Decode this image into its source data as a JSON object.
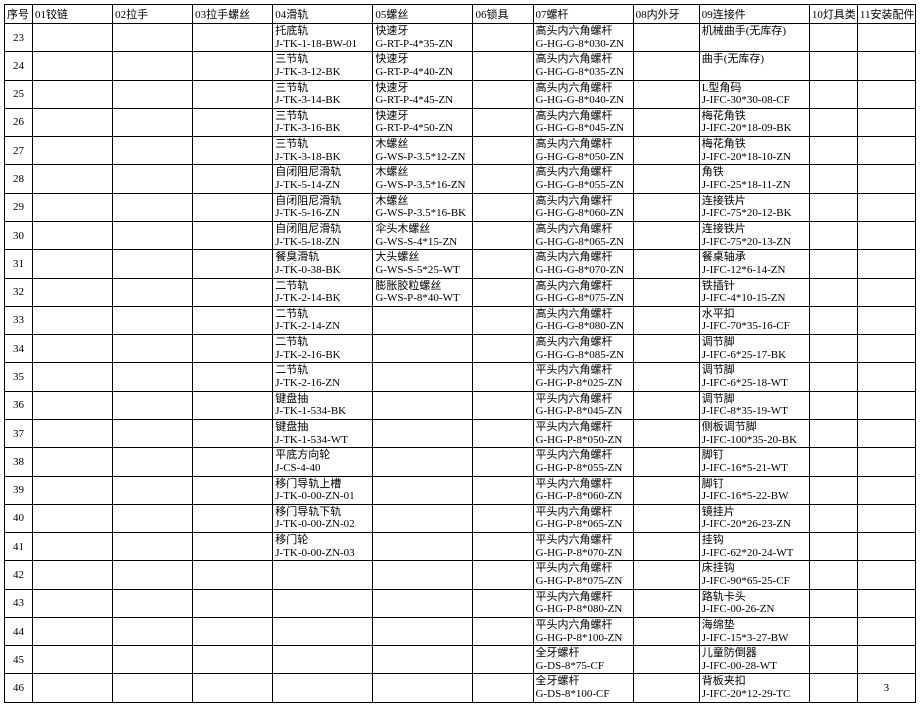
{
  "headers": {
    "seq": "序号",
    "c01": "01铰链",
    "c02": "02拉手",
    "c03": "03拉手螺丝",
    "c04": "04滑轨",
    "c05": "05螺丝",
    "c06": "06锁具",
    "c07": "07螺杆",
    "c08": "08内外牙",
    "c09": "09连接件",
    "c10": "10灯具类",
    "c11": "11安装配件"
  },
  "rows": [
    {
      "seq": "23",
      "c04a": "托底轨",
      "c04b": "J-TK-1-18-BW-01",
      "c05a": "快速牙",
      "c05b": "G-RT-P-4*35-ZN",
      "c07a": "高头内六角螺杆",
      "c07b": "G-HG-G-8*030-ZN",
      "c09a": "机械曲手(无库存)",
      "c09b": ""
    },
    {
      "seq": "24",
      "c04a": "三节轨",
      "c04b": "J-TK-3-12-BK",
      "c05a": "快速牙",
      "c05b": "G-RT-P-4*40-ZN",
      "c07a": "高头内六角螺杆",
      "c07b": "G-HG-G-8*035-ZN",
      "c09a": "曲手(无库存)",
      "c09b": ""
    },
    {
      "seq": "25",
      "c04a": "三节轨",
      "c04b": "J-TK-3-14-BK",
      "c05a": "快速牙",
      "c05b": "G-RT-P-4*45-ZN",
      "c07a": "高头内六角螺杆",
      "c07b": "G-HG-G-8*040-ZN",
      "c09a": "L型角码",
      "c09b": "J-IFC-30*30-08-CF"
    },
    {
      "seq": "26",
      "c04a": "三节轨",
      "c04b": "J-TK-3-16-BK",
      "c05a": "快速牙",
      "c05b": "G-RT-P-4*50-ZN",
      "c07a": "高头内六角螺杆",
      "c07b": "G-HG-G-8*045-ZN",
      "c09a": "梅花角铁",
      "c09b": "J-IFC-20*18-09-BK"
    },
    {
      "seq": "27",
      "c04a": "三节轨",
      "c04b": "J-TK-3-18-BK",
      "c05a": "木螺丝",
      "c05b": "G-WS-P-3.5*12-ZN",
      "c07a": "高头内六角螺杆",
      "c07b": "G-HG-G-8*050-ZN",
      "c09a": "梅花角铁",
      "c09b": "J-IFC-20*18-10-ZN"
    },
    {
      "seq": "28",
      "c04a": "自闭阻尼滑轨",
      "c04b": "J-TK-5-14-ZN",
      "c05a": "木螺丝",
      "c05b": "G-WS-P-3.5*16-ZN",
      "c07a": "高头内六角螺杆",
      "c07b": "G-HG-G-8*055-ZN",
      "c09a": "角铁",
      "c09b": "J-IFC-25*18-11-ZN"
    },
    {
      "seq": "29",
      "c04a": "自闭阻尼滑轨",
      "c04b": "J-TK-5-16-ZN",
      "c05a": "木螺丝",
      "c05b": "G-WS-P-3.5*16-BK",
      "c07a": "高头内六角螺杆",
      "c07b": "G-HG-G-8*060-ZN",
      "c09a": "连接铁片",
      "c09b": "J-IFC-75*20-12-BK"
    },
    {
      "seq": "30",
      "c04a": "自闭阻尼滑轨",
      "c04b": "J-TK-5-18-ZN",
      "c05a": "伞头木螺丝",
      "c05b": "G-WS-S-4*15-ZN",
      "c07a": "高头内六角螺杆",
      "c07b": "G-HG-G-8*065-ZN",
      "c09a": "连接铁片",
      "c09b": "J-IFC-75*20-13-ZN"
    },
    {
      "seq": "31",
      "c04a": "餐臭滑轨",
      "c04b": "J-TK-0-38-BK",
      "c05a": "大头螺丝",
      "c05b": "G-WS-S-5*25-WT",
      "c07a": "高头内六角螺杆",
      "c07b": "G-HG-G-8*070-ZN",
      "c09a": "餐桌轴承",
      "c09b": "J-IFC-12*6-14-ZN"
    },
    {
      "seq": "32",
      "c04a": "二节轨",
      "c04b": "J-TK-2-14-BK",
      "c05a": "膨胀胶粒螺丝",
      "c05b": "G-WS-P-8*40-WT",
      "c07a": "高头内六角螺杆",
      "c07b": "G-HG-G-8*075-ZN",
      "c09a": "铁插针",
      "c09b": "J-IFC-4*10-15-ZN"
    },
    {
      "seq": "33",
      "c04a": "二节轨",
      "c04b": "J-TK-2-14-ZN",
      "c07a": "高头内六角螺杆",
      "c07b": "G-HG-G-8*080-ZN",
      "c09a": "水平扣",
      "c09b": "J-IFC-70*35-16-CF"
    },
    {
      "seq": "34",
      "c04a": "二节轨",
      "c04b": "J-TK-2-16-BK",
      "c07a": "高头内六角螺杆",
      "c07b": "G-HG-G-8*085-ZN",
      "c09a": "调节脚",
      "c09b": "J-IFC-6*25-17-BK"
    },
    {
      "seq": "35",
      "c04a": "二节轨",
      "c04b": "J-TK-2-16-ZN",
      "c07a": "平头内六角螺杆",
      "c07b": "G-HG-P-8*025-ZN",
      "c09a": "调节脚",
      "c09b": "J-IFC-6*25-18-WT"
    },
    {
      "seq": "36",
      "c04a": "键盘抽",
      "c04b": "J-TK-1-534-BK",
      "c07a": "平头内六角螺杆",
      "c07b": "G-HG-P-8*045-ZN",
      "c09a": "调节脚",
      "c09b": "J-IFC-8*35-19-WT"
    },
    {
      "seq": "37",
      "c04a": "键盘抽",
      "c04b": "J-TK-1-534-WT",
      "c07a": "平头内六角螺杆",
      "c07b": "G-HG-P-8*050-ZN",
      "c09a": "侧板调节脚",
      "c09b": "J-IFC-100*35-20-BK"
    },
    {
      "seq": "38",
      "c04a": "平底方向轮",
      "c04b": "J-CS-4-40",
      "c07a": "平头内六角螺杆",
      "c07b": "G-HG-P-8*055-ZN",
      "c09a": "脚钉",
      "c09b": "J-IFC-16*5-21-WT"
    },
    {
      "seq": "39",
      "c04a": "移门导轨上槽",
      "c04b": "J-TK-0-00-ZN-01",
      "c07a": "平头内六角螺杆",
      "c07b": "G-HG-P-8*060-ZN",
      "c09a": "脚钉",
      "c09b": "J-IFC-16*5-22-BW"
    },
    {
      "seq": "40",
      "c04a": "移门导轨下轨",
      "c04b": "J-TK-0-00-ZN-02",
      "c07a": "平头内六角螺杆",
      "c07b": "G-HG-P-8*065-ZN",
      "c09a": "镜挂片",
      "c09b": "J-IFC-20*26-23-ZN"
    },
    {
      "seq": "41",
      "c04a": "移门轮",
      "c04b": "J-TK-0-00-ZN-03",
      "c07a": "平头内六角螺杆",
      "c07b": "G-HG-P-8*070-ZN",
      "c09a": "挂钩",
      "c09b": "J-IFC-62*20-24-WT"
    },
    {
      "seq": "42",
      "c07a": "平头内六角螺杆",
      "c07b": "G-HG-P-8*075-ZN",
      "c09a": "床挂钩",
      "c09b": "J-IFC-90*65-25-CF"
    },
    {
      "seq": "43",
      "c07a": "平头内六角螺杆",
      "c07b": "G-HG-P-8*080-ZN",
      "c09a": "路轨卡头",
      "c09b": "J-IFC-00-26-ZN"
    },
    {
      "seq": "44",
      "c07a": "平头内六角螺杆",
      "c07b": "G-HG-P-8*100-ZN",
      "c09a": "海绵垫",
      "c09b": "J-IFC-15*3-27-BW"
    },
    {
      "seq": "45",
      "c07a": "全牙螺杆",
      "c07b": "G-DS-8*75-CF",
      "c09a": "儿童防倒器",
      "c09b": "J-IFC-00-28-WT"
    },
    {
      "seq": "46",
      "c07a": "全牙螺杆",
      "c07b": "G-DS-8*100-CF",
      "c09a": "背板夹扣",
      "c09b": "J-IFC-20*12-29-TC",
      "c11": "3"
    }
  ]
}
